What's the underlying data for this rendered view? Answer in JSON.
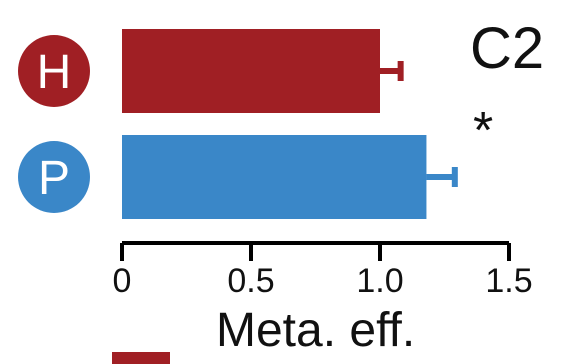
{
  "chart_data": {
    "type": "bar",
    "orientation": "horizontal",
    "panel_label": "C2",
    "categories": [
      "H",
      "P"
    ],
    "values": [
      1.0,
      1.18
    ],
    "errors": [
      0.08,
      0.11
    ],
    "colors": [
      "#a01f24",
      "#3a87c8"
    ],
    "significance_marker": "*",
    "xlim": [
      0,
      1.5
    ],
    "xticks": [
      0,
      0.5,
      1.0,
      1.5
    ],
    "xtick_labels": [
      "0",
      "0.5",
      "1.0",
      "1.5"
    ],
    "grid": false,
    "legend": {
      "placement": "bottom",
      "entries": [
        {
          "label": "Meta. eff.",
          "color": "#a01f24"
        }
      ]
    }
  }
}
